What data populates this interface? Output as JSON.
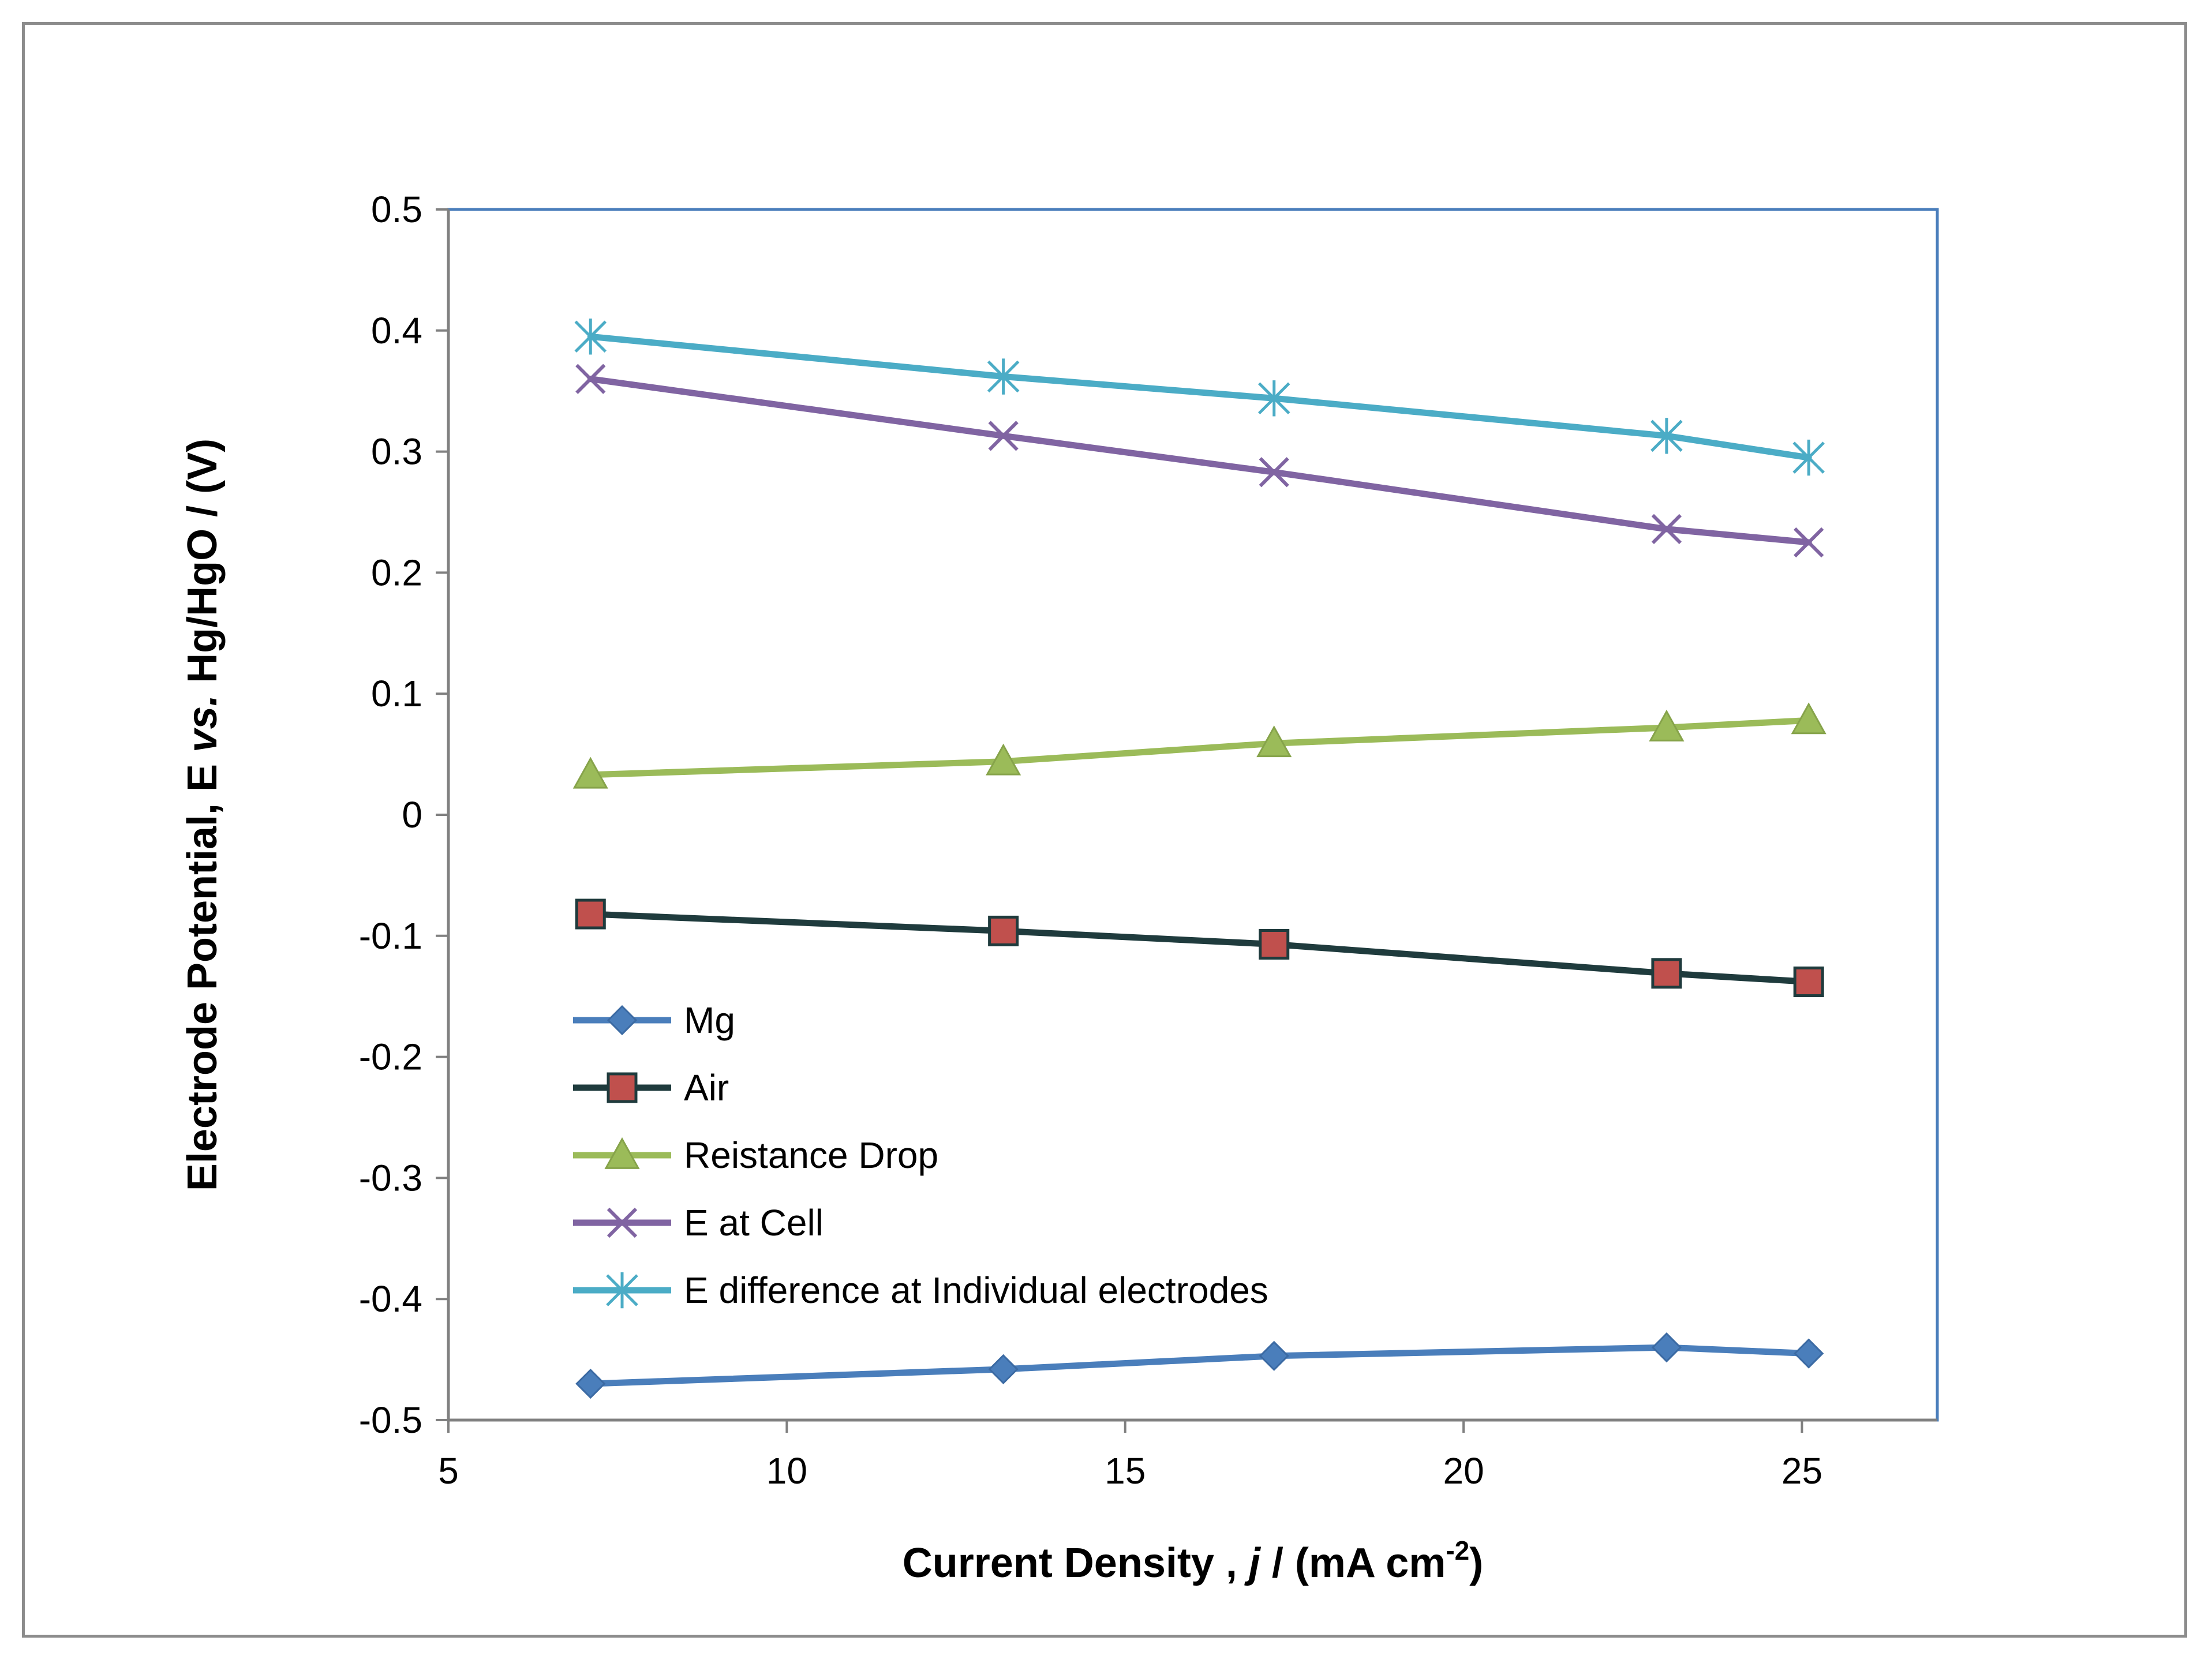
{
  "chart_data": {
    "type": "line",
    "title": "",
    "xlabel": {
      "prefix": "Current Density , ",
      "italic": "j",
      "mid": " / (mA cm",
      "sup": "-2",
      "suffix": ")"
    },
    "ylabel": {
      "prefix": "Electrode  Potential, E ",
      "italic": "vs.",
      "suffix": " Hg/HgO / (V)"
    },
    "xlim": [
      5,
      27
    ],
    "ylim": [
      -0.5,
      0.5
    ],
    "xticks": [
      5,
      10,
      15,
      20,
      25
    ],
    "yticks": [
      0.5,
      0.4,
      0.3,
      0.2,
      0.1,
      0,
      -0.1,
      -0.2,
      -0.3,
      -0.4,
      -0.5
    ],
    "grid": false,
    "legend_position": "lower-left",
    "x": [
      7.1,
      13.2,
      17.2,
      23.0,
      25.1
    ],
    "series": [
      {
        "name": "Mg",
        "marker": "diamond",
        "color": "#4a7ebb",
        "values": [
          -0.47,
          -0.458,
          -0.447,
          -0.44,
          -0.445
        ]
      },
      {
        "name": "Air",
        "marker": "square",
        "color": "#1f3b3d",
        "marker_color": "#c0504d",
        "values": [
          -0.082,
          -0.096,
          -0.107,
          -0.131,
          -0.138
        ]
      },
      {
        "name": "Reistance Drop",
        "marker": "triangle",
        "color": "#9bbb59",
        "values": [
          0.033,
          0.044,
          0.059,
          0.072,
          0.078
        ]
      },
      {
        "name": "E at Cell",
        "marker": "x",
        "color": "#8064a2",
        "values": [
          0.36,
          0.313,
          0.283,
          0.236,
          0.225
        ]
      },
      {
        "name": "E difference at Individual electrodes",
        "marker": "star",
        "color": "#4bacc6",
        "values": [
          0.395,
          0.362,
          0.344,
          0.313,
          0.295
        ]
      }
    ]
  }
}
